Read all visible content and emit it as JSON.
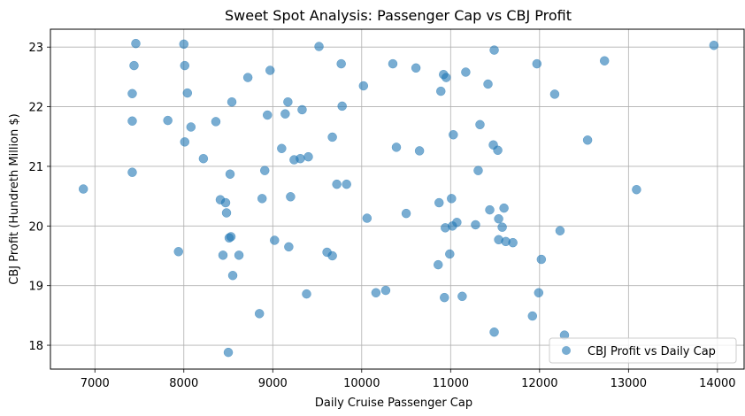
{
  "chart_data": {
    "type": "scatter",
    "title": "Sweet Spot Analysis: Passenger Cap vs CBJ Profit",
    "xlabel": "Daily Cruise Passenger Cap",
    "ylabel": "CBJ Profit (Hundreth Million $)",
    "xlim": [
      6500,
      14300
    ],
    "ylim": [
      17.6,
      23.3
    ],
    "xticks": [
      7000,
      8000,
      9000,
      10000,
      11000,
      12000,
      13000,
      14000
    ],
    "yticks": [
      18,
      19,
      20,
      21,
      22,
      23
    ],
    "grid": true,
    "legend_position": "bottom-right",
    "series": [
      {
        "name": "CBJ Profit vs Daily Cap",
        "color": "#1f77b4",
        "points": [
          [
            6870,
            20.62
          ],
          [
            7420,
            20.9
          ],
          [
            7420,
            21.76
          ],
          [
            7420,
            22.22
          ],
          [
            7440,
            22.69
          ],
          [
            7460,
            23.06
          ],
          [
            7820,
            21.77
          ],
          [
            7940,
            19.57
          ],
          [
            8000,
            23.05
          ],
          [
            8010,
            22.69
          ],
          [
            8010,
            21.41
          ],
          [
            8040,
            22.23
          ],
          [
            8080,
            21.66
          ],
          [
            8220,
            21.13
          ],
          [
            8360,
            21.75
          ],
          [
            8410,
            20.44
          ],
          [
            8440,
            19.51
          ],
          [
            8470,
            20.39
          ],
          [
            8480,
            20.22
          ],
          [
            8500,
            17.88
          ],
          [
            8510,
            19.8
          ],
          [
            8520,
            20.87
          ],
          [
            8530,
            19.82
          ],
          [
            8540,
            22.08
          ],
          [
            8550,
            19.17
          ],
          [
            8620,
            19.51
          ],
          [
            8720,
            22.49
          ],
          [
            8850,
            18.53
          ],
          [
            8880,
            20.46
          ],
          [
            8910,
            20.93
          ],
          [
            8940,
            21.86
          ],
          [
            8970,
            22.61
          ],
          [
            9020,
            19.76
          ],
          [
            9100,
            21.3
          ],
          [
            9140,
            21.88
          ],
          [
            9170,
            22.08
          ],
          [
            9180,
            19.65
          ],
          [
            9200,
            20.49
          ],
          [
            9240,
            21.11
          ],
          [
            9310,
            21.13
          ],
          [
            9330,
            21.95
          ],
          [
            9380,
            18.86
          ],
          [
            9400,
            21.16
          ],
          [
            9520,
            23.01
          ],
          [
            9610,
            19.56
          ],
          [
            9670,
            21.49
          ],
          [
            9670,
            19.5
          ],
          [
            9720,
            20.7
          ],
          [
            9770,
            22.72
          ],
          [
            9780,
            22.01
          ],
          [
            9830,
            20.7
          ],
          [
            10020,
            22.35
          ],
          [
            10060,
            20.13
          ],
          [
            10160,
            18.88
          ],
          [
            10270,
            18.92
          ],
          [
            10350,
            22.72
          ],
          [
            10390,
            21.32
          ],
          [
            10500,
            20.21
          ],
          [
            10610,
            22.65
          ],
          [
            10650,
            21.26
          ],
          [
            10860,
            19.35
          ],
          [
            10870,
            20.39
          ],
          [
            10890,
            22.26
          ],
          [
            10920,
            22.54
          ],
          [
            10930,
            18.8
          ],
          [
            10940,
            19.97
          ],
          [
            10950,
            22.49
          ],
          [
            10990,
            19.53
          ],
          [
            11010,
            20.46
          ],
          [
            11030,
            21.53
          ],
          [
            11020,
            20.0
          ],
          [
            11070,
            20.06
          ],
          [
            11130,
            18.82
          ],
          [
            11170,
            22.58
          ],
          [
            11280,
            20.02
          ],
          [
            11310,
            20.93
          ],
          [
            11330,
            21.7
          ],
          [
            11420,
            22.38
          ],
          [
            11440,
            20.27
          ],
          [
            11480,
            21.36
          ],
          [
            11490,
            22.95
          ],
          [
            11490,
            18.22
          ],
          [
            11530,
            21.27
          ],
          [
            11540,
            19.77
          ],
          [
            11540,
            20.12
          ],
          [
            11580,
            19.98
          ],
          [
            11600,
            20.3
          ],
          [
            11620,
            19.74
          ],
          [
            11700,
            19.72
          ],
          [
            11920,
            18.49
          ],
          [
            11970,
            22.72
          ],
          [
            11990,
            18.88
          ],
          [
            12020,
            19.44
          ],
          [
            12170,
            22.21
          ],
          [
            12230,
            19.92
          ],
          [
            12280,
            18.17
          ],
          [
            12540,
            21.44
          ],
          [
            12730,
            22.77
          ],
          [
            13090,
            20.61
          ],
          [
            13960,
            23.03
          ]
        ]
      }
    ]
  }
}
